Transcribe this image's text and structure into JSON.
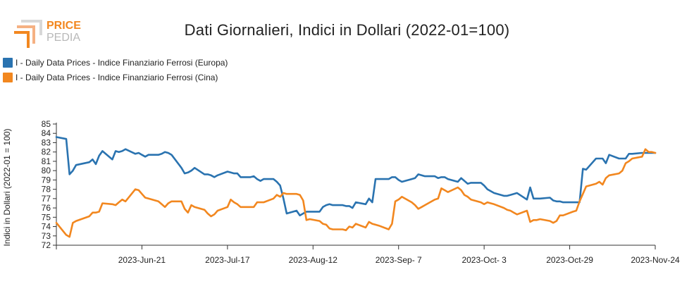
{
  "logo": {
    "line1": "PRICE",
    "line2": "PEDIA"
  },
  "chart_data": {
    "type": "line",
    "title": "Dati Giornalieri, Indici in Dollari (2022-01=100)",
    "ylabel": "Indici in Dollari (2022-01 = 100)",
    "ylim": [
      72,
      85
    ],
    "yticks": [
      72,
      73,
      74,
      75,
      76,
      77,
      78,
      79,
      80,
      81,
      82,
      83,
      84,
      85
    ],
    "xlim": [
      "2023-05-26",
      "2023-11-24"
    ],
    "xticks": [
      "2023-Jun-21",
      "2023-Jul-17",
      "2023-Aug-12",
      "2023-Sep- 7",
      "2023-Oct- 3",
      "2023-Oct-29",
      "2023-Nov-24"
    ],
    "xtick_dates": [
      "2023-06-21",
      "2023-07-17",
      "2023-08-12",
      "2023-09-07",
      "2023-10-03",
      "2023-10-29",
      "2023-11-24"
    ],
    "legend_position": "top-left",
    "grid": false,
    "series": [
      {
        "name": "I - Daily Data Prices - Indice Finanziario Ferrosi (Europa)",
        "color": "#2a73b0",
        "points": [
          [
            "2023-05-26",
            83.6
          ],
          [
            "2023-05-29",
            83.4
          ],
          [
            "2023-05-30",
            79.6
          ],
          [
            "2023-05-31",
            80.0
          ],
          [
            "2023-06-01",
            80.6
          ],
          [
            "2023-06-05",
            80.9
          ],
          [
            "2023-06-06",
            81.2
          ],
          [
            "2023-06-07",
            80.7
          ],
          [
            "2023-06-08",
            81.6
          ],
          [
            "2023-06-09",
            82.1
          ],
          [
            "2023-06-12",
            81.2
          ],
          [
            "2023-06-13",
            82.1
          ],
          [
            "2023-06-14",
            82.0
          ],
          [
            "2023-06-15",
            82.1
          ],
          [
            "2023-06-16",
            82.3
          ],
          [
            "2023-06-19",
            81.8
          ],
          [
            "2023-06-20",
            81.9
          ],
          [
            "2023-06-21",
            81.7
          ],
          [
            "2023-06-22",
            81.5
          ],
          [
            "2023-06-23",
            81.7
          ],
          [
            "2023-06-26",
            81.7
          ],
          [
            "2023-06-27",
            81.8
          ],
          [
            "2023-06-28",
            82.0
          ],
          [
            "2023-06-29",
            81.9
          ],
          [
            "2023-06-30",
            81.7
          ],
          [
            "2023-07-03",
            80.3
          ],
          [
            "2023-07-04",
            79.7
          ],
          [
            "2023-07-05",
            79.8
          ],
          [
            "2023-07-06",
            80.0
          ],
          [
            "2023-07-07",
            80.3
          ],
          [
            "2023-07-10",
            79.6
          ],
          [
            "2023-07-11",
            79.6
          ],
          [
            "2023-07-12",
            79.5
          ],
          [
            "2023-07-13",
            79.3
          ],
          [
            "2023-07-14",
            79.5
          ],
          [
            "2023-07-17",
            79.9
          ],
          [
            "2023-07-18",
            79.8
          ],
          [
            "2023-07-19",
            79.7
          ],
          [
            "2023-07-20",
            79.7
          ],
          [
            "2023-07-21",
            79.3
          ],
          [
            "2023-07-24",
            79.3
          ],
          [
            "2023-07-25",
            79.4
          ],
          [
            "2023-07-26",
            79.1
          ],
          [
            "2023-07-27",
            78.9
          ],
          [
            "2023-07-28",
            79.1
          ],
          [
            "2023-07-31",
            79.1
          ],
          [
            "2023-08-01",
            78.8
          ],
          [
            "2023-08-02",
            78.4
          ],
          [
            "2023-08-03",
            77.0
          ],
          [
            "2023-08-04",
            75.4
          ],
          [
            "2023-08-07",
            75.7
          ],
          [
            "2023-08-08",
            75.2
          ],
          [
            "2023-08-09",
            75.4
          ],
          [
            "2023-08-10",
            75.6
          ],
          [
            "2023-08-11",
            75.6
          ],
          [
            "2023-08-14",
            75.6
          ],
          [
            "2023-08-15",
            76.1
          ],
          [
            "2023-08-16",
            76.3
          ],
          [
            "2023-08-17",
            76.4
          ],
          [
            "2023-08-18",
            76.3
          ],
          [
            "2023-08-21",
            76.3
          ],
          [
            "2023-08-22",
            76.2
          ],
          [
            "2023-08-23",
            76.2
          ],
          [
            "2023-08-24",
            76.0
          ],
          [
            "2023-08-25",
            76.6
          ],
          [
            "2023-08-28",
            76.4
          ],
          [
            "2023-08-29",
            77.0
          ],
          [
            "2023-08-30",
            76.6
          ],
          [
            "2023-08-31",
            79.1
          ],
          [
            "2023-09-01",
            79.1
          ],
          [
            "2023-09-04",
            79.1
          ],
          [
            "2023-09-05",
            79.3
          ],
          [
            "2023-09-06",
            79.3
          ],
          [
            "2023-09-07",
            79.0
          ],
          [
            "2023-09-08",
            78.8
          ],
          [
            "2023-09-11",
            79.1
          ],
          [
            "2023-09-12",
            79.2
          ],
          [
            "2023-09-13",
            79.6
          ],
          [
            "2023-09-14",
            79.5
          ],
          [
            "2023-09-15",
            79.4
          ],
          [
            "2023-09-18",
            79.4
          ],
          [
            "2023-09-19",
            79.2
          ],
          [
            "2023-09-20",
            79.3
          ],
          [
            "2023-09-21",
            79.3
          ],
          [
            "2023-09-22",
            79.1
          ],
          [
            "2023-09-25",
            78.8
          ],
          [
            "2023-09-26",
            79.2
          ],
          [
            "2023-09-27",
            78.9
          ],
          [
            "2023-09-28",
            78.6
          ],
          [
            "2023-09-29",
            78.7
          ],
          [
            "2023-10-02",
            78.7
          ],
          [
            "2023-10-03",
            78.4
          ],
          [
            "2023-10-04",
            78.0
          ],
          [
            "2023-10-05",
            77.8
          ],
          [
            "2023-10-06",
            77.6
          ],
          [
            "2023-10-09",
            77.3
          ],
          [
            "2023-10-10",
            77.3
          ],
          [
            "2023-10-11",
            77.4
          ],
          [
            "2023-10-12",
            77.5
          ],
          [
            "2023-10-13",
            77.6
          ],
          [
            "2023-10-16",
            76.9
          ],
          [
            "2023-10-17",
            78.2
          ],
          [
            "2023-10-18",
            77.0
          ],
          [
            "2023-10-19",
            77.0
          ],
          [
            "2023-10-20",
            77.0
          ],
          [
            "2023-10-23",
            77.1
          ],
          [
            "2023-10-24",
            76.8
          ],
          [
            "2023-10-25",
            76.7
          ],
          [
            "2023-10-26",
            76.7
          ],
          [
            "2023-10-27",
            76.6
          ],
          [
            "2023-10-30",
            76.6
          ],
          [
            "2023-10-31",
            76.6
          ],
          [
            "2023-11-01",
            76.6
          ],
          [
            "2023-11-02",
            80.2
          ],
          [
            "2023-11-03",
            80.1
          ],
          [
            "2023-11-06",
            81.3
          ],
          [
            "2023-11-07",
            81.3
          ],
          [
            "2023-11-08",
            81.3
          ],
          [
            "2023-11-09",
            80.8
          ],
          [
            "2023-11-10",
            81.7
          ],
          [
            "2023-11-13",
            81.3
          ],
          [
            "2023-11-14",
            81.3
          ],
          [
            "2023-11-15",
            81.3
          ],
          [
            "2023-11-16",
            81.8
          ],
          [
            "2023-11-17",
            81.8
          ],
          [
            "2023-11-20",
            81.9
          ],
          [
            "2023-11-21",
            81.9
          ],
          [
            "2023-11-22",
            81.9
          ],
          [
            "2023-11-23",
            81.9
          ],
          [
            "2023-11-24",
            81.9
          ]
        ]
      },
      {
        "name": "I - Daily Data Prices - Indice Finanziario Ferrosi (Cina)",
        "color": "#f2871f",
        "points": [
          [
            "2023-05-26",
            74.4
          ],
          [
            "2023-05-29",
            73.1
          ],
          [
            "2023-05-30",
            72.9
          ],
          [
            "2023-05-31",
            74.4
          ],
          [
            "2023-06-01",
            74.6
          ],
          [
            "2023-06-05",
            75.1
          ],
          [
            "2023-06-06",
            75.5
          ],
          [
            "2023-06-07",
            75.5
          ],
          [
            "2023-06-08",
            75.6
          ],
          [
            "2023-06-09",
            76.5
          ],
          [
            "2023-06-12",
            76.4
          ],
          [
            "2023-06-13",
            76.3
          ],
          [
            "2023-06-14",
            76.6
          ],
          [
            "2023-06-15",
            76.9
          ],
          [
            "2023-06-16",
            76.7
          ],
          [
            "2023-06-19",
            78.0
          ],
          [
            "2023-06-20",
            77.9
          ],
          [
            "2023-06-21",
            77.5
          ],
          [
            "2023-06-22",
            77.1
          ],
          [
            "2023-06-23",
            77.0
          ],
          [
            "2023-06-26",
            76.7
          ],
          [
            "2023-06-27",
            76.4
          ],
          [
            "2023-06-28",
            76.1
          ],
          [
            "2023-06-29",
            76.5
          ],
          [
            "2023-06-30",
            76.7
          ],
          [
            "2023-07-03",
            76.7
          ],
          [
            "2023-07-04",
            75.9
          ],
          [
            "2023-07-05",
            75.5
          ],
          [
            "2023-07-06",
            76.3
          ],
          [
            "2023-07-07",
            76.1
          ],
          [
            "2023-07-10",
            75.8
          ],
          [
            "2023-07-11",
            75.4
          ],
          [
            "2023-07-12",
            75.1
          ],
          [
            "2023-07-13",
            75.3
          ],
          [
            "2023-07-14",
            75.7
          ],
          [
            "2023-07-17",
            76.1
          ],
          [
            "2023-07-18",
            76.9
          ],
          [
            "2023-07-19",
            76.6
          ],
          [
            "2023-07-20",
            76.4
          ],
          [
            "2023-07-21",
            76.1
          ],
          [
            "2023-07-24",
            76.1
          ],
          [
            "2023-07-25",
            76.1
          ],
          [
            "2023-07-26",
            76.6
          ],
          [
            "2023-07-27",
            76.6
          ],
          [
            "2023-07-28",
            76.6
          ],
          [
            "2023-07-31",
            77.0
          ],
          [
            "2023-08-01",
            77.4
          ],
          [
            "2023-08-02",
            77.2
          ],
          [
            "2023-08-03",
            77.6
          ],
          [
            "2023-08-04",
            77.5
          ],
          [
            "2023-08-07",
            77.5
          ],
          [
            "2023-08-08",
            77.4
          ],
          [
            "2023-08-09",
            76.8
          ],
          [
            "2023-08-10",
            74.7
          ],
          [
            "2023-08-11",
            74.8
          ],
          [
            "2023-08-14",
            74.6
          ],
          [
            "2023-08-15",
            74.3
          ],
          [
            "2023-08-16",
            74.2
          ],
          [
            "2023-08-17",
            73.8
          ],
          [
            "2023-08-18",
            73.7
          ],
          [
            "2023-08-21",
            73.7
          ],
          [
            "2023-08-22",
            73.6
          ],
          [
            "2023-08-23",
            74.0
          ],
          [
            "2023-08-24",
            73.9
          ],
          [
            "2023-08-25",
            74.3
          ],
          [
            "2023-08-28",
            73.9
          ],
          [
            "2023-08-29",
            74.5
          ],
          [
            "2023-08-30",
            74.3
          ],
          [
            "2023-08-31",
            74.2
          ],
          [
            "2023-09-01",
            74.1
          ],
          [
            "2023-09-04",
            73.7
          ],
          [
            "2023-09-05",
            74.3
          ],
          [
            "2023-09-06",
            76.7
          ],
          [
            "2023-09-07",
            76.9
          ],
          [
            "2023-09-08",
            77.2
          ],
          [
            "2023-09-11",
            76.6
          ],
          [
            "2023-09-12",
            76.3
          ],
          [
            "2023-09-13",
            75.9
          ],
          [
            "2023-09-14",
            76.1
          ],
          [
            "2023-09-15",
            76.3
          ],
          [
            "2023-09-18",
            76.9
          ],
          [
            "2023-09-19",
            77.0
          ],
          [
            "2023-09-20",
            78.1
          ],
          [
            "2023-09-21",
            77.9
          ],
          [
            "2023-09-22",
            77.7
          ],
          [
            "2023-09-25",
            78.2
          ],
          [
            "2023-09-26",
            77.9
          ],
          [
            "2023-09-27",
            77.4
          ],
          [
            "2023-09-28",
            77.2
          ],
          [
            "2023-09-29",
            76.9
          ],
          [
            "2023-10-02",
            76.6
          ],
          [
            "2023-10-03",
            76.4
          ],
          [
            "2023-10-04",
            76.6
          ],
          [
            "2023-10-05",
            76.5
          ],
          [
            "2023-10-06",
            76.4
          ],
          [
            "2023-10-09",
            76.0
          ],
          [
            "2023-10-10",
            75.8
          ],
          [
            "2023-10-11",
            75.7
          ],
          [
            "2023-10-12",
            75.5
          ],
          [
            "2023-10-13",
            75.3
          ],
          [
            "2023-10-16",
            75.7
          ],
          [
            "2023-10-17",
            74.5
          ],
          [
            "2023-10-18",
            74.7
          ],
          [
            "2023-10-19",
            74.7
          ],
          [
            "2023-10-20",
            74.8
          ],
          [
            "2023-10-23",
            74.6
          ],
          [
            "2023-10-24",
            74.4
          ],
          [
            "2023-10-25",
            74.6
          ],
          [
            "2023-10-26",
            75.2
          ],
          [
            "2023-10-27",
            75.2
          ],
          [
            "2023-10-30",
            75.6
          ],
          [
            "2023-10-31",
            75.7
          ],
          [
            "2023-11-01",
            76.7
          ],
          [
            "2023-11-02",
            77.5
          ],
          [
            "2023-11-03",
            78.3
          ],
          [
            "2023-11-06",
            78.6
          ],
          [
            "2023-11-07",
            78.8
          ],
          [
            "2023-11-08",
            78.5
          ],
          [
            "2023-11-09",
            79.2
          ],
          [
            "2023-11-10",
            79.5
          ],
          [
            "2023-11-13",
            79.7
          ],
          [
            "2023-11-14",
            80.0
          ],
          [
            "2023-11-15",
            80.8
          ],
          [
            "2023-11-16",
            81.0
          ],
          [
            "2023-11-17",
            81.3
          ],
          [
            "2023-11-20",
            81.5
          ],
          [
            "2023-11-21",
            82.3
          ],
          [
            "2023-11-22",
            82.0
          ],
          [
            "2023-11-23",
            82.0
          ],
          [
            "2023-11-24",
            81.9
          ]
        ]
      }
    ]
  }
}
